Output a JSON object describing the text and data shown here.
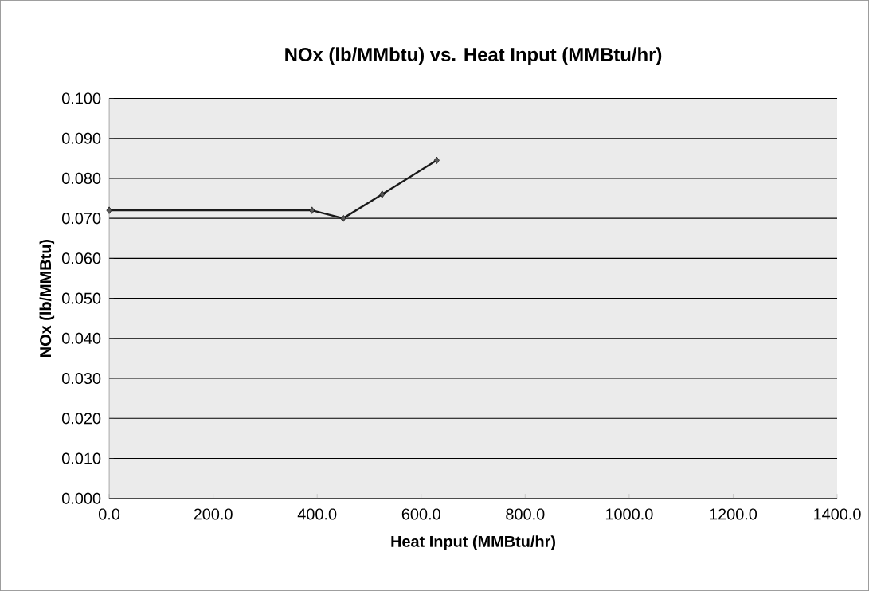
{
  "chart_data": {
    "type": "line",
    "title": "NOx (lb/MMbtu) vs. Heat Input (MMBtu/hr)",
    "xlabel": "Heat Input (MMBtu/hr)",
    "ylabel": "NOx (lb/MMBtu)",
    "x": [
      0,
      390,
      450,
      525,
      630
    ],
    "series": [
      {
        "color": "#1a1a1a",
        "values": [
          0.072,
          0.072,
          0.07,
          0.076,
          0.0845
        ]
      }
    ],
    "xlim": [
      0,
      1400
    ],
    "xticks": [
      {
        "value": 0,
        "label": "0.0"
      },
      {
        "value": 200,
        "label": "200.0"
      },
      {
        "value": 400,
        "label": "400.0"
      },
      {
        "value": 600,
        "label": "600.0"
      },
      {
        "value": 800,
        "label": "800.0"
      },
      {
        "value": 1000,
        "label": "1000.0"
      },
      {
        "value": 1200,
        "label": "1200.0"
      },
      {
        "value": 1400,
        "label": "1400.0"
      }
    ],
    "ylim": [
      0,
      0.1
    ],
    "yticks": [
      {
        "value": 0,
        "label": "0.000"
      },
      {
        "value": 0.01,
        "label": "0.010"
      },
      {
        "value": 0.02,
        "label": "0.020"
      },
      {
        "value": 0.03,
        "label": "0.030"
      },
      {
        "value": 0.04,
        "label": "0.040"
      },
      {
        "value": 0.05,
        "label": "0.050"
      },
      {
        "value": 0.06,
        "label": "0.060"
      },
      {
        "value": 0.07,
        "label": "0.070"
      },
      {
        "value": 0.08,
        "label": "0.080"
      },
      {
        "value": 0.09,
        "label": "0.090"
      },
      {
        "value": 0.1,
        "label": "0.100"
      }
    ],
    "grid": "y",
    "marker": "diamond",
    "line_style": "solid"
  }
}
